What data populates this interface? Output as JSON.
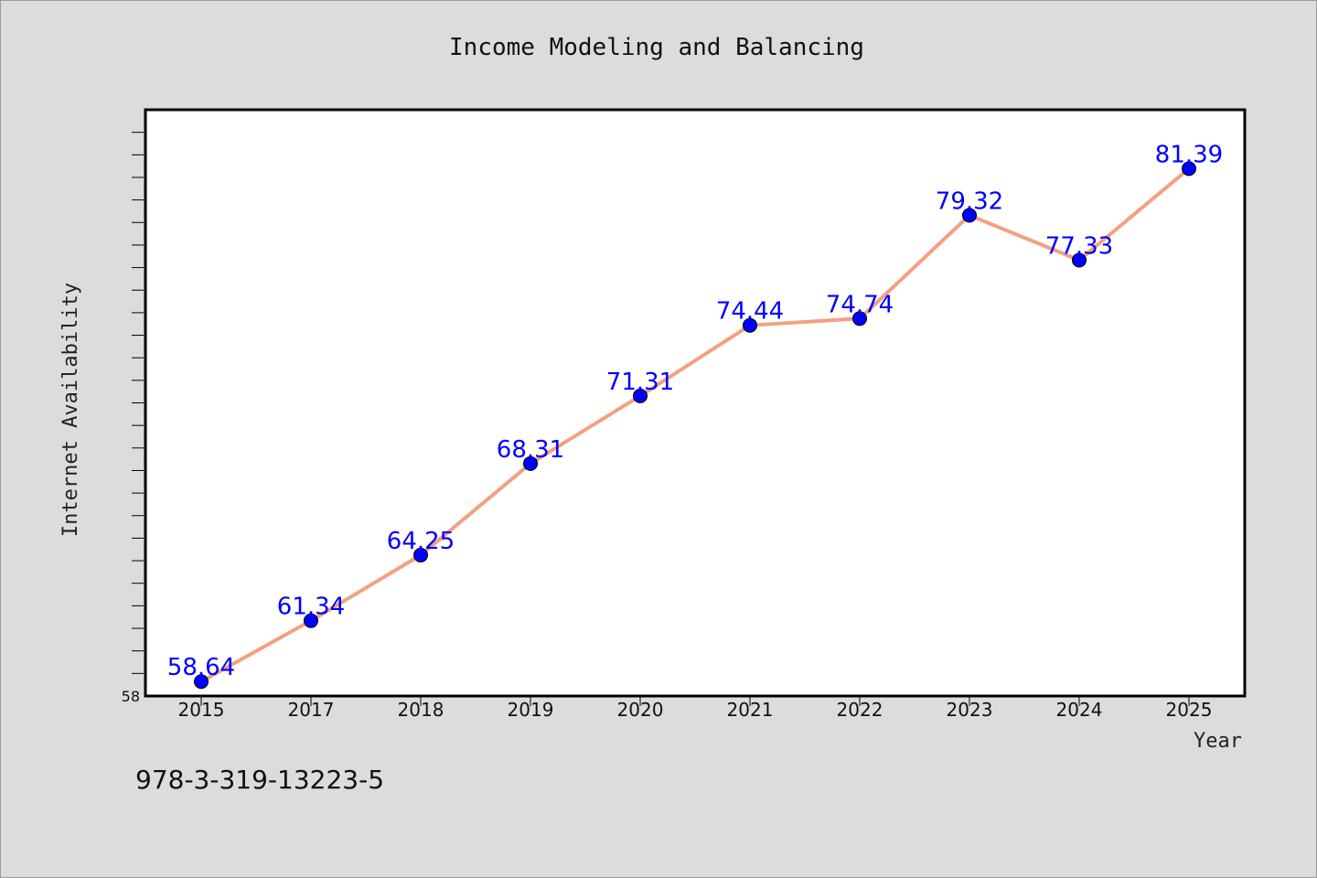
{
  "chart_data": {
    "type": "line",
    "title": "Income Modeling and Balancing",
    "xlabel": "Year",
    "ylabel": "Internet Availability",
    "categories": [
      "2015",
      "2017",
      "2018",
      "2019",
      "2020",
      "2021",
      "2022",
      "2023",
      "2024",
      "2025"
    ],
    "series": [
      {
        "values": [
          58.64,
          61.34,
          64.25,
          68.31,
          71.31,
          74.44,
          74.74,
          79.32,
          77.33,
          81.39
        ]
      }
    ],
    "data_labels": [
      "58.64",
      "61.34",
      "64.25",
      "68.31",
      "71.31",
      "74.44",
      "74.74",
      "79.32",
      "77.33",
      "81.39"
    ],
    "ytick_labels": [
      "58"
    ],
    "ylim": [
      58,
      84
    ],
    "y_minor_tick_step": 1,
    "grid": false,
    "line_color": "#f4a07f",
    "marker_color": "#0000ff",
    "label_color": "#0000ff"
  },
  "footer": {
    "code": "978-3-319-13223-5"
  }
}
